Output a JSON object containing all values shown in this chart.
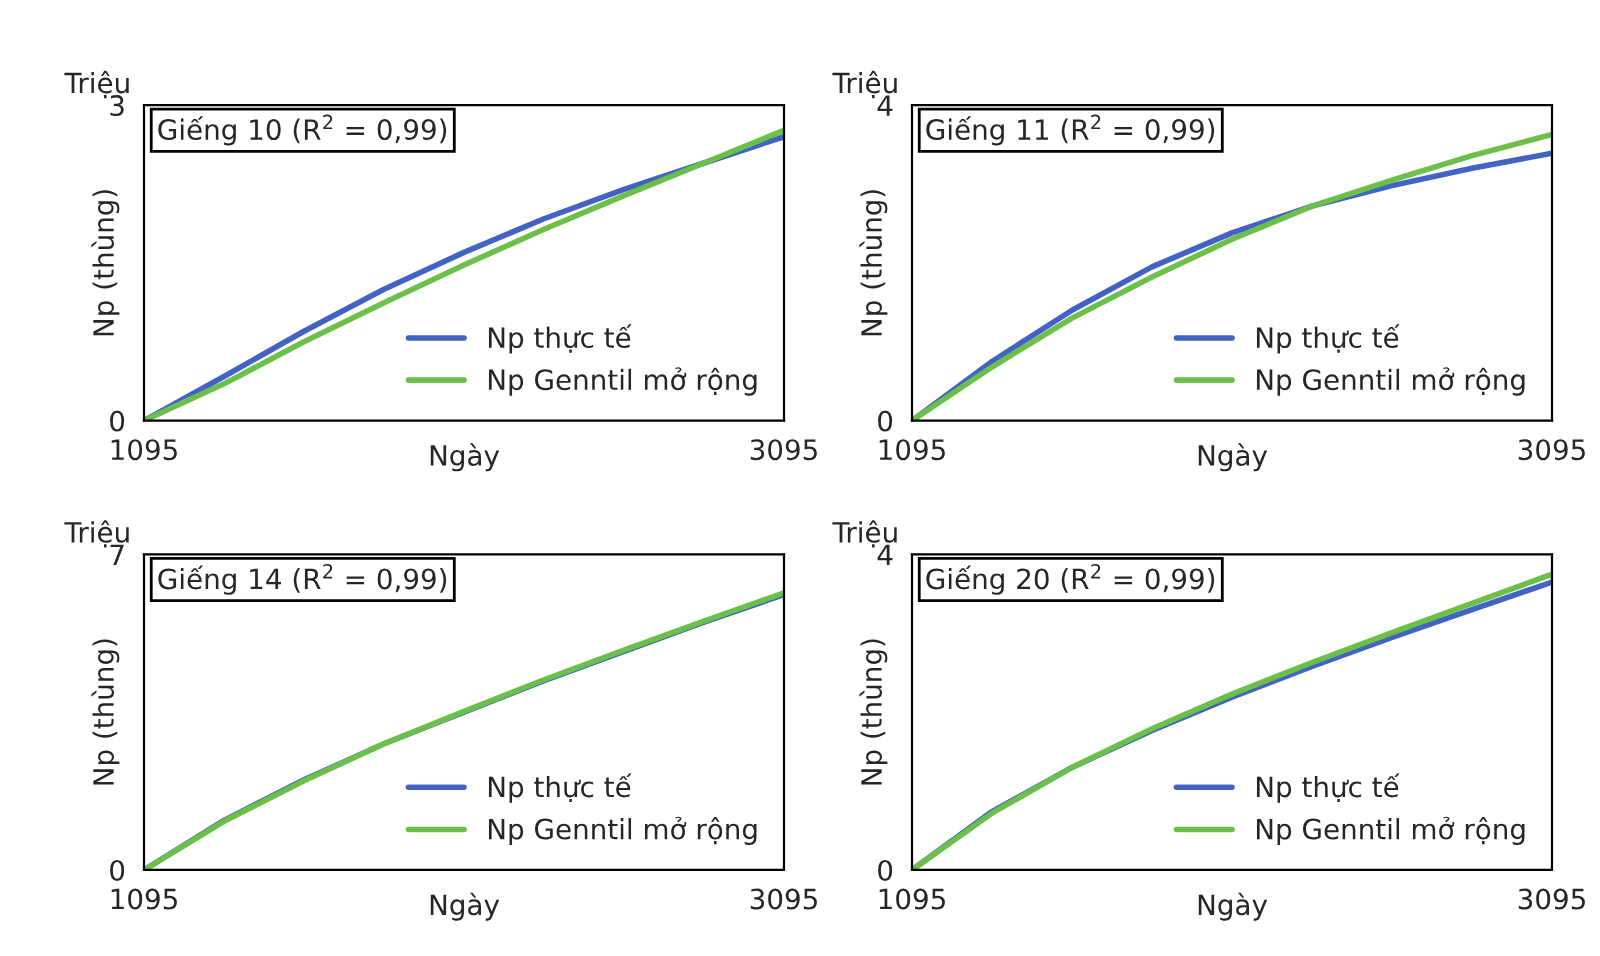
{
  "chart_data": [
    {
      "type": "line",
      "title": "Giếng 10 (R$^{2}$ = 0,99)",
      "xlabel": "Ngày",
      "ylabel": "Np (thùng)",
      "annotations": [
        "Triệu"
      ],
      "x": [
        1095,
        1345,
        1595,
        1845,
        2095,
        2345,
        2595,
        2845,
        3095
      ],
      "xlim": [
        1095,
        3095
      ],
      "xticks": [
        1095,
        3095
      ],
      "ylim": [
        0,
        3
      ],
      "yticks": [
        0,
        3
      ],
      "grid": false,
      "legend": "bottom right",
      "line_style": "solid",
      "series": [
        {
          "name": "Np thực tế",
          "color": "#4262c4",
          "values": [
            0,
            0.42,
            0.85,
            1.25,
            1.6,
            1.92,
            2.2,
            2.45,
            2.7
          ]
        },
        {
          "name": "Np Genntil mở rộng",
          "color": "#6cc04a",
          "values": [
            0,
            0.35,
            0.75,
            1.12,
            1.48,
            1.82,
            2.14,
            2.45,
            2.76
          ]
        }
      ]
    },
    {
      "type": "line",
      "title": "Giếng 11 (R$^{2}$ = 0,99)",
      "xlabel": "Ngày",
      "ylabel": "Np (thùng)",
      "annotations": [
        "Triệu"
      ],
      "x": [
        1095,
        1345,
        1595,
        1845,
        2095,
        2345,
        2595,
        2845,
        3095
      ],
      "xlim": [
        1095,
        3095
      ],
      "xticks": [
        1095,
        3095
      ],
      "ylim": [
        0,
        4
      ],
      "yticks": [
        0,
        4
      ],
      "grid": false,
      "legend": "bottom right",
      "line_style": "solid",
      "series": [
        {
          "name": "Np thực tế",
          "color": "#4262c4",
          "values": [
            0,
            0.75,
            1.4,
            1.95,
            2.38,
            2.72,
            2.98,
            3.2,
            3.39
          ]
        },
        {
          "name": "Np Genntil mở rộng",
          "color": "#6cc04a",
          "values": [
            0,
            0.68,
            1.3,
            1.82,
            2.3,
            2.72,
            3.05,
            3.36,
            3.63
          ]
        }
      ]
    },
    {
      "type": "line",
      "title": "Giếng 14 (R$^{2}$ = 0,99)",
      "xlabel": "Ngày",
      "ylabel": "Np (thùng)",
      "annotations": [
        "Triệu"
      ],
      "x": [
        1095,
        1345,
        1595,
        1845,
        2095,
        2345,
        2595,
        2845,
        3095
      ],
      "xlim": [
        1095,
        3095
      ],
      "xticks": [
        1095,
        3095
      ],
      "ylim": [
        0,
        7
      ],
      "yticks": [
        0,
        7
      ],
      "grid": false,
      "legend": "bottom right",
      "line_style": "solid",
      "series": [
        {
          "name": "Np thực tế",
          "color": "#4262c4",
          "values": [
            0,
            1.1,
            2.0,
            2.8,
            3.5,
            4.2,
            4.85,
            5.5,
            6.11
          ]
        },
        {
          "name": "Np Genntil mở rộng",
          "color": "#6cc04a",
          "values": [
            0,
            1.08,
            1.98,
            2.8,
            3.52,
            4.22,
            4.88,
            5.52,
            6.15
          ]
        }
      ]
    },
    {
      "type": "line",
      "title": "Giếng 20 (R$^{2}$ = 0,99)",
      "xlabel": "Ngày",
      "ylabel": "Np (thùng)",
      "annotations": [
        "Triệu"
      ],
      "x": [
        1095,
        1345,
        1595,
        1845,
        2095,
        2345,
        2595,
        2845,
        3095
      ],
      "xlim": [
        1095,
        3095
      ],
      "xticks": [
        1095,
        3095
      ],
      "ylim": [
        0,
        4
      ],
      "yticks": [
        0,
        4
      ],
      "grid": false,
      "legend": "bottom right",
      "line_style": "solid",
      "series": [
        {
          "name": "Np thực tế",
          "color": "#4262c4",
          "values": [
            0,
            0.74,
            1.3,
            1.77,
            2.19,
            2.58,
            2.95,
            3.3,
            3.65
          ]
        },
        {
          "name": "Np Genntil mở rộng",
          "color": "#6cc04a",
          "values": [
            0,
            0.72,
            1.3,
            1.79,
            2.23,
            2.63,
            3.01,
            3.38,
            3.75
          ]
        }
      ]
    }
  ]
}
